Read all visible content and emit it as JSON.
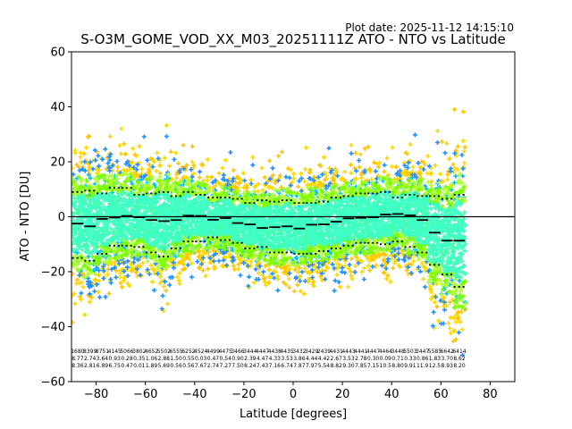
{
  "plot_date": "Plot date: 2025-11-12 14:15:10",
  "chart_data": {
    "type": "scatter",
    "title": "S-O3M_GOME_VOD_XX_M03_20251111Z ATO - NTO vs Latitude",
    "xlabel": "Latitude [degrees]",
    "ylabel": "ATO - NTO [DU]",
    "xlim": [
      -90,
      90
    ],
    "ylim": [
      -60,
      60
    ],
    "xticks": [
      -80,
      -60,
      -40,
      -20,
      0,
      20,
      40,
      60,
      80
    ],
    "yticks": [
      -60,
      -40,
      -20,
      0,
      20,
      40,
      60
    ],
    "grid": false,
    "zero_line": 0,
    "series": [
      {
        "kind": "bin_mean",
        "color": "#000000",
        "x": [
          -87.5,
          -82.5,
          -77.5,
          -72.5,
          -67.5,
          -62.5,
          -57.5,
          -52.5,
          -47.5,
          -42.5,
          -37.5,
          -32.5,
          -27.5,
          -22.5,
          -17.5,
          -12.5,
          -7.5,
          -2.5,
          2.5,
          7.5,
          12.5,
          17.5,
          22.5,
          27.5,
          32.5,
          37.5,
          42.5,
          47.5,
          52.5,
          57.5,
          62.5,
          67.5
        ],
        "y": [
          -2.5,
          -3.5,
          -0.8,
          -0.3,
          0.3,
          -0.2,
          -1.2,
          -1.6,
          -1.2,
          0.4,
          0.3,
          -1.1,
          -0.5,
          -2.3,
          -2.8,
          -4.1,
          -3.8,
          -3.5,
          -4.3,
          -2.9,
          -2.8,
          -1.8,
          -0.6,
          -0.4,
          -0.2,
          0.8,
          1.0,
          0.5,
          -1.2,
          -5.8,
          -8.7,
          -8.7
        ]
      },
      {
        "kind": "bin_mean_plus_std",
        "color": "#000000",
        "x": [
          -87.5,
          -82.5,
          -77.5,
          -72.5,
          -67.5,
          -62.5,
          -57.5,
          -52.5,
          -47.5,
          -42.5,
          -37.5,
          -32.5,
          -27.5,
          -22.5,
          -17.5,
          -12.5,
          -7.5,
          -2.5,
          2.5,
          7.5,
          12.5,
          17.5,
          22.5,
          27.5,
          32.5,
          37.5,
          42.5,
          47.5,
          52.5,
          57.5,
          62.5,
          67.5
        ],
        "y": [
          9.0,
          9.5,
          8.5,
          10.5,
          10.5,
          8.0,
          8.5,
          9.0,
          7.5,
          9.0,
          8.0,
          7.0,
          7.0,
          6.5,
          5.0,
          6.0,
          5.5,
          6.0,
          5.0,
          5.0,
          5.5,
          7.0,
          7.5,
          8.5,
          8.5,
          9.0,
          7.0,
          8.0,
          7.5,
          7.5,
          6.5,
          8.0
        ]
      },
      {
        "kind": "bin_mean_minus_std",
        "color": "#000000",
        "x": [
          -87.5,
          -82.5,
          -77.5,
          -72.5,
          -67.5,
          -62.5,
          -57.5,
          -52.5,
          -47.5,
          -42.5,
          -37.5,
          -32.5,
          -27.5,
          -22.5,
          -17.5,
          -12.5,
          -7.5,
          -2.5,
          2.5,
          7.5,
          12.5,
          17.5,
          22.5,
          27.5,
          32.5,
          37.5,
          42.5,
          47.5,
          52.5,
          57.5,
          62.5,
          67.5
        ],
        "y": [
          -15.0,
          -16.0,
          -13.5,
          -10.5,
          -10.5,
          -11.0,
          -13.0,
          -14.5,
          -11.5,
          -9.0,
          -9.0,
          -7.5,
          -8.5,
          -9.5,
          -11.5,
          -11.0,
          -13.0,
          -13.0,
          -13.5,
          -13.5,
          -12.5,
          -11.5,
          -10.5,
          -9.5,
          -9.5,
          -10.0,
          -9.0,
          -11.0,
          -13.0,
          -17.5,
          -21.0,
          -25.5
        ]
      }
    ],
    "bin_stats": [
      [
        "1680",
        "8.77",
        "8.36"
      ],
      [
        "8399",
        "2.74",
        "2.81"
      ],
      [
        "8751",
        "3.64",
        "6.89"
      ],
      [
        "4145",
        "0.93",
        "6.75"
      ],
      [
        "5066",
        "0.28",
        "0.47"
      ],
      [
        "3802",
        "0.35",
        "0.01"
      ],
      [
        "4652",
        "1.06",
        "1.89"
      ],
      [
        "5502",
        "2.88",
        "5.69"
      ],
      [
        "6555",
        "1.50",
        "0.56"
      ],
      [
        "6252",
        "0.55",
        "0.56"
      ],
      [
        "4524",
        "0.03",
        "7.67"
      ],
      [
        "4499",
        "0.47",
        "2.74"
      ],
      [
        "4475",
        "0.54",
        "7.27"
      ],
      [
        "3466",
        "0.90",
        "7.50"
      ],
      [
        "3444",
        "2.39",
        "8.24"
      ],
      [
        "4447",
        "4.47",
        "7.43"
      ],
      [
        "4438",
        "4.33",
        "7.16"
      ],
      [
        "4435",
        "3.53",
        "6.74"
      ],
      [
        "3432",
        "3.86",
        "7.87"
      ],
      [
        "3429",
        "4.44",
        "7.97"
      ],
      [
        "2439",
        "4.42",
        "5.54"
      ],
      [
        "4431",
        "2.67",
        "8.82"
      ],
      [
        "4443",
        "3.53",
        "9.30"
      ],
      [
        "4441",
        "2.78",
        "7.85"
      ],
      [
        "4447",
        "0.30",
        "7.15"
      ],
      [
        "4464",
        "0.09",
        "10.5"
      ],
      [
        "3448",
        "0.71",
        "8.80"
      ],
      [
        "5503",
        "0.33",
        "9.91"
      ],
      [
        "3447",
        "0.86",
        "11.9"
      ],
      [
        "5585",
        "1.83",
        "12.5"
      ],
      [
        "6642",
        "3.70",
        "8.93"
      ],
      [
        "6414",
        "8.62",
        "8.20"
      ]
    ],
    "scatter_colors": [
      "#ffd700",
      "#ffc400",
      "#00bfff",
      "#1e90ff",
      "#adff2f",
      "#7cfc00",
      "#40ffb0",
      "#3fffc8",
      "#0000e0",
      "#ffaa00"
    ]
  }
}
